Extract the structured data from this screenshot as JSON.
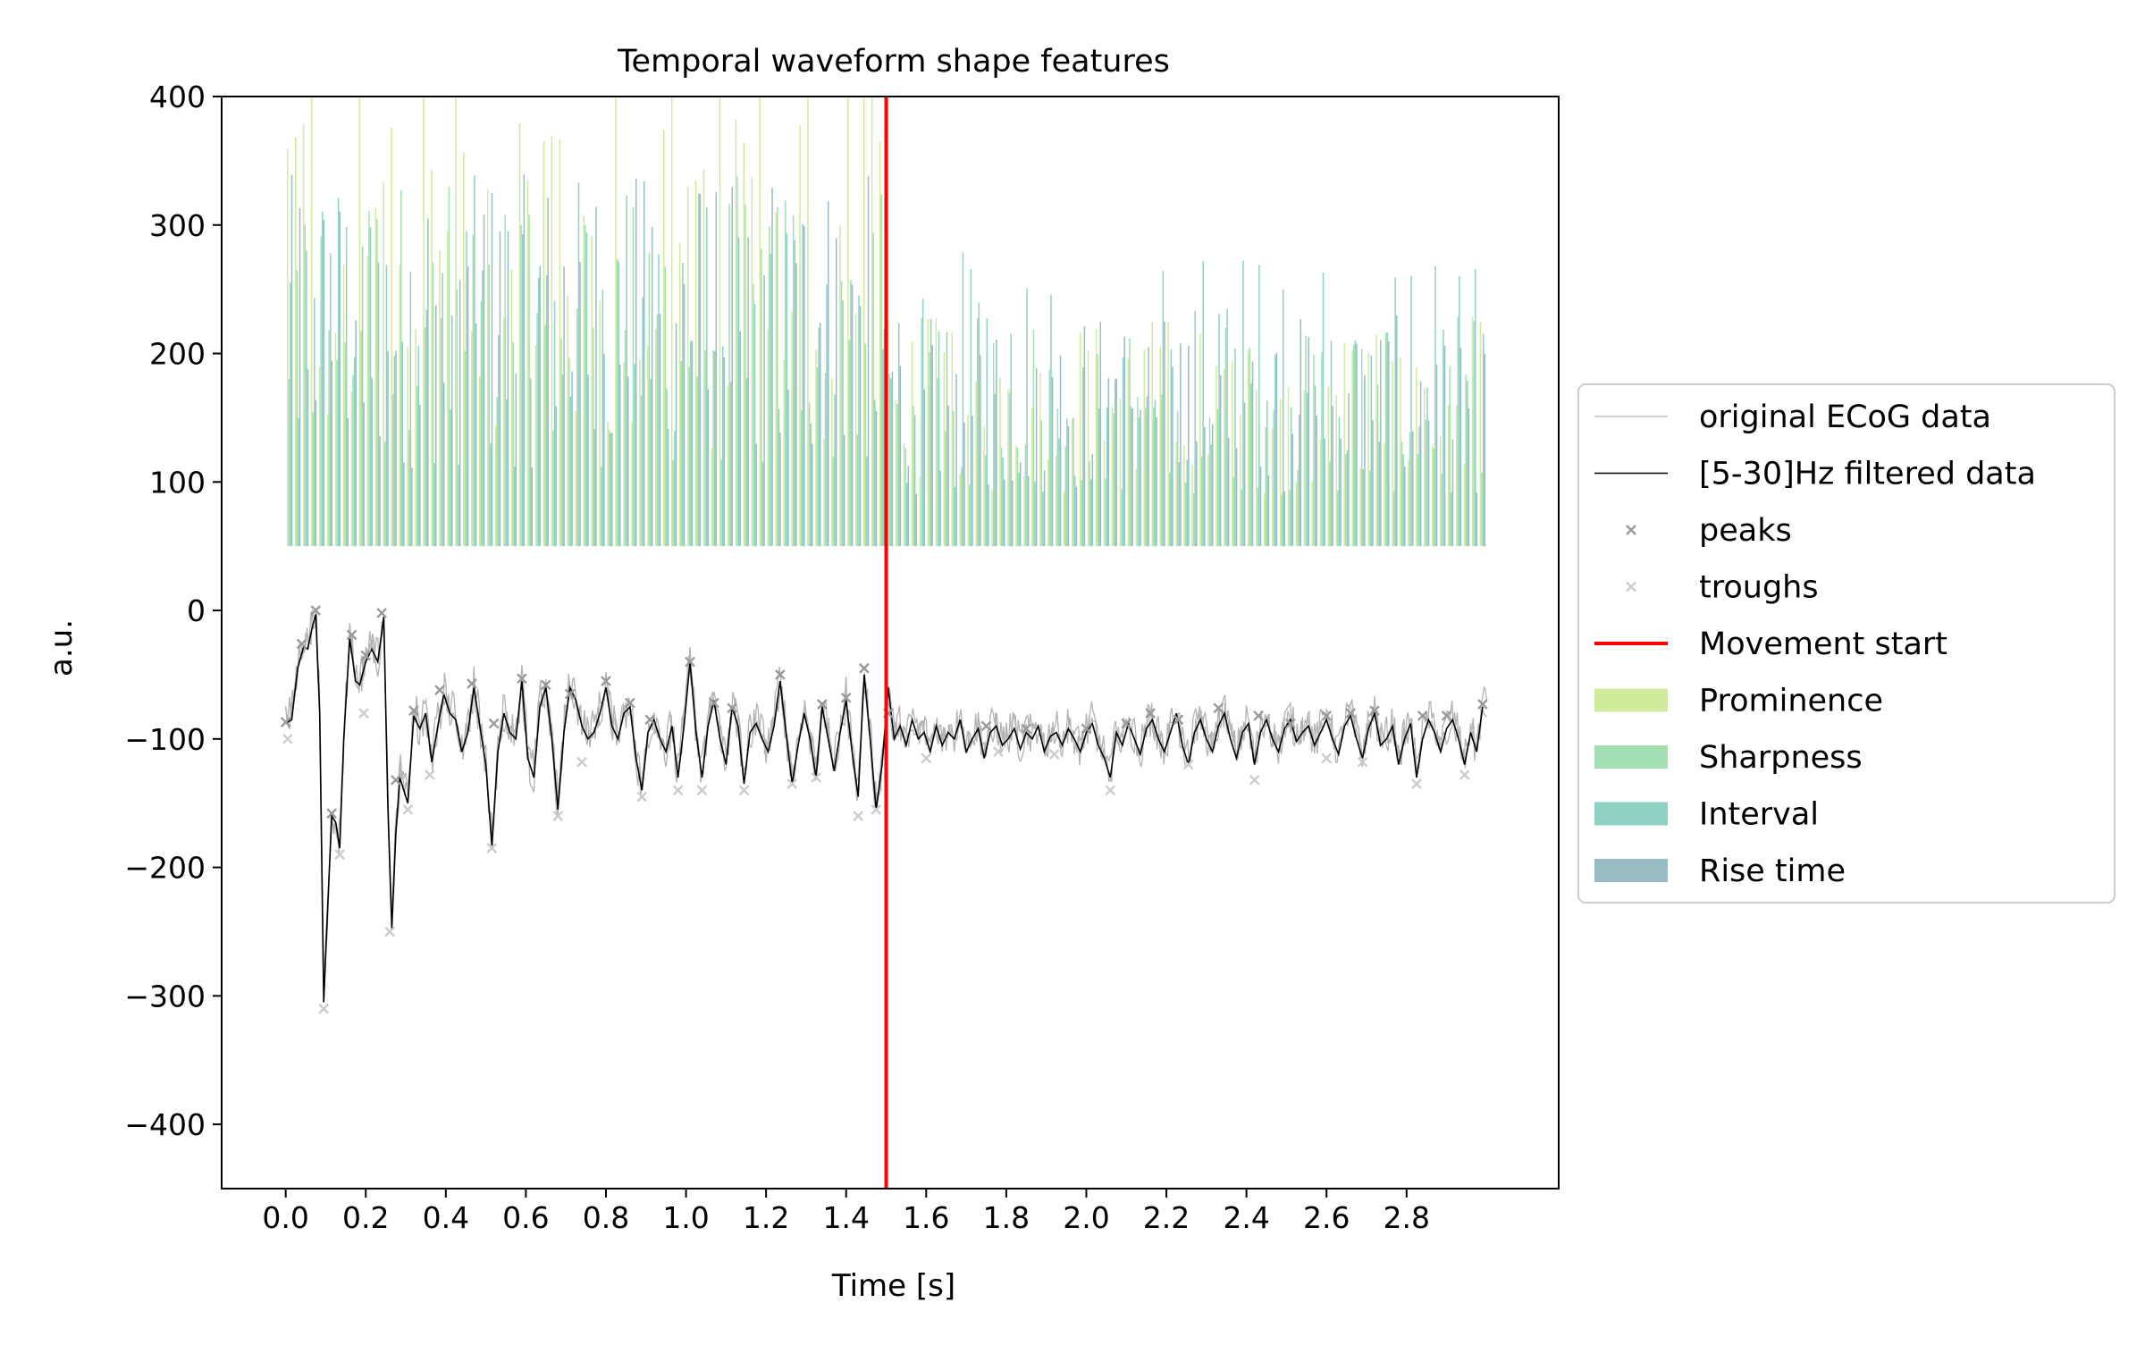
{
  "chart_data": {
    "type": "line",
    "title": "Temporal waveform shape features",
    "xlabel": "Time [s]",
    "ylabel": "a.u.",
    "xlim": [
      -0.16,
      3.18
    ],
    "ylim": [
      -450,
      400
    ],
    "xticks": [
      0.0,
      0.2,
      0.4,
      0.6,
      0.8,
      1.0,
      1.2,
      1.4,
      1.6,
      1.8,
      2.0,
      2.2,
      2.4,
      2.6,
      2.8
    ],
    "xtick_labels": [
      "0.0",
      "0.2",
      "0.4",
      "0.6",
      "0.8",
      "1.0",
      "1.2",
      "1.4",
      "1.6",
      "1.8",
      "2.0",
      "2.2",
      "2.4",
      "2.6",
      "2.8"
    ],
    "yticks": [
      -400,
      -300,
      -200,
      -100,
      0,
      100,
      200,
      300,
      400
    ],
    "ytick_labels": [
      "−400",
      "−300",
      "−200",
      "−100",
      "0",
      "100",
      "200",
      "300",
      "400"
    ],
    "grid": false,
    "legend_position": "outside-right",
    "legend": [
      {
        "label": "original ECoG data",
        "kind": "line",
        "color": "#b3b3b3",
        "width": 1.2
      },
      {
        "label": "[5-30]Hz filtered data",
        "kind": "line",
        "color": "#000000",
        "width": 1.6
      },
      {
        "label": "peaks",
        "kind": "marker",
        "color": "#999999"
      },
      {
        "label": "troughs",
        "kind": "marker",
        "color": "#cccccc"
      },
      {
        "label": "Movement start",
        "kind": "line",
        "color": "#ff0000",
        "width": 4
      },
      {
        "label": "Prominence",
        "kind": "patch",
        "color": "#d0eb9b"
      },
      {
        "label": "Sharpness",
        "kind": "patch",
        "color": "#a4dfb3"
      },
      {
        "label": "Interval",
        "kind": "patch",
        "color": "#8fd1c3"
      },
      {
        "label": "Rise time",
        "kind": "patch",
        "color": "#97bcc4"
      }
    ],
    "movement_start": 1.5,
    "feature_bar_base": 50,
    "filtered_series": {
      "name": "[5-30]Hz filtered data",
      "points": [
        [
          0.0,
          -88
        ],
        [
          0.015,
          -85
        ],
        [
          0.03,
          -45
        ],
        [
          0.045,
          -28
        ],
        [
          0.055,
          -30
        ],
        [
          0.065,
          -15
        ],
        [
          0.075,
          -3
        ],
        [
          0.085,
          -80
        ],
        [
          0.095,
          -305
        ],
        [
          0.105,
          -230
        ],
        [
          0.115,
          -160
        ],
        [
          0.125,
          -165
        ],
        [
          0.135,
          -185
        ],
        [
          0.145,
          -100
        ],
        [
          0.16,
          -22
        ],
        [
          0.175,
          -55
        ],
        [
          0.185,
          -58
        ],
        [
          0.2,
          -40
        ],
        [
          0.215,
          -30
        ],
        [
          0.23,
          -40
        ],
        [
          0.245,
          -5
        ],
        [
          0.255,
          -150
        ],
        [
          0.265,
          -248
        ],
        [
          0.275,
          -175
        ],
        [
          0.285,
          -130
        ],
        [
          0.295,
          -140
        ],
        [
          0.305,
          -150
        ],
        [
          0.32,
          -82
        ],
        [
          0.335,
          -92
        ],
        [
          0.35,
          -80
        ],
        [
          0.365,
          -118
        ],
        [
          0.38,
          -90
        ],
        [
          0.395,
          -65
        ],
        [
          0.41,
          -80
        ],
        [
          0.425,
          -85
        ],
        [
          0.44,
          -110
        ],
        [
          0.455,
          -95
        ],
        [
          0.47,
          -60
        ],
        [
          0.485,
          -90
        ],
        [
          0.5,
          -120
        ],
        [
          0.515,
          -183
        ],
        [
          0.53,
          -110
        ],
        [
          0.545,
          -80
        ],
        [
          0.56,
          -95
        ],
        [
          0.575,
          -100
        ],
        [
          0.59,
          -55
        ],
        [
          0.605,
          -115
        ],
        [
          0.62,
          -130
        ],
        [
          0.635,
          -75
        ],
        [
          0.65,
          -60
        ],
        [
          0.665,
          -100
        ],
        [
          0.68,
          -155
        ],
        [
          0.695,
          -95
        ],
        [
          0.71,
          -60
        ],
        [
          0.725,
          -70
        ],
        [
          0.74,
          -90
        ],
        [
          0.755,
          -100
        ],
        [
          0.77,
          -95
        ],
        [
          0.785,
          -80
        ],
        [
          0.8,
          -60
        ],
        [
          0.815,
          -90
        ],
        [
          0.83,
          -100
        ],
        [
          0.845,
          -80
        ],
        [
          0.86,
          -75
        ],
        [
          0.875,
          -115
        ],
        [
          0.89,
          -140
        ],
        [
          0.905,
          -95
        ],
        [
          0.92,
          -85
        ],
        [
          0.935,
          -100
        ],
        [
          0.95,
          -110
        ],
        [
          0.965,
          -90
        ],
        [
          0.98,
          -130
        ],
        [
          0.995,
          -90
        ],
        [
          1.01,
          -40
        ],
        [
          1.025,
          -95
        ],
        [
          1.04,
          -130
        ],
        [
          1.055,
          -90
        ],
        [
          1.07,
          -70
        ],
        [
          1.085,
          -100
        ],
        [
          1.1,
          -120
        ],
        [
          1.115,
          -75
        ],
        [
          1.13,
          -90
        ],
        [
          1.145,
          -135
        ],
        [
          1.16,
          -95
        ],
        [
          1.175,
          -88
        ],
        [
          1.19,
          -100
        ],
        [
          1.205,
          -110
        ],
        [
          1.22,
          -90
        ],
        [
          1.235,
          -55
        ],
        [
          1.25,
          -95
        ],
        [
          1.265,
          -135
        ],
        [
          1.28,
          -105
        ],
        [
          1.295,
          -80
        ],
        [
          1.31,
          -100
        ],
        [
          1.325,
          -130
        ],
        [
          1.34,
          -75
        ],
        [
          1.355,
          -100
        ],
        [
          1.37,
          -125
        ],
        [
          1.385,
          -95
        ],
        [
          1.4,
          -70
        ],
        [
          1.415,
          -110
        ],
        [
          1.43,
          -145
        ],
        [
          1.445,
          -50
        ],
        [
          1.46,
          -100
        ],
        [
          1.475,
          -155
        ],
        [
          1.49,
          -120
        ],
        [
          1.505,
          -60
        ],
        [
          1.52,
          -100
        ],
        [
          1.535,
          -90
        ],
        [
          1.55,
          -105
        ],
        [
          1.565,
          -85
        ],
        [
          1.58,
          -100
        ],
        [
          1.595,
          -95
        ],
        [
          1.61,
          -110
        ],
        [
          1.625,
          -90
        ],
        [
          1.64,
          -105
        ],
        [
          1.655,
          -95
        ],
        [
          1.67,
          -100
        ],
        [
          1.685,
          -85
        ],
        [
          1.7,
          -110
        ],
        [
          1.715,
          -100
        ],
        [
          1.73,
          -92
        ],
        [
          1.745,
          -115
        ],
        [
          1.76,
          -95
        ],
        [
          1.775,
          -90
        ],
        [
          1.79,
          -105
        ],
        [
          1.805,
          -100
        ],
        [
          1.82,
          -92
        ],
        [
          1.835,
          -108
        ],
        [
          1.85,
          -95
        ],
        [
          1.865,
          -100
        ],
        [
          1.88,
          -90
        ],
        [
          1.895,
          -110
        ],
        [
          1.91,
          -98
        ],
        [
          1.925,
          -95
        ],
        [
          1.94,
          -105
        ],
        [
          1.955,
          -92
        ],
        [
          1.97,
          -100
        ],
        [
          1.985,
          -110
        ],
        [
          2.0,
          -95
        ],
        [
          2.015,
          -88
        ],
        [
          2.03,
          -105
        ],
        [
          2.045,
          -115
        ],
        [
          2.06,
          -130
        ],
        [
          2.075,
          -95
        ],
        [
          2.09,
          -105
        ],
        [
          2.105,
          -88
        ],
        [
          2.12,
          -100
        ],
        [
          2.135,
          -112
        ],
        [
          2.15,
          -92
        ],
        [
          2.165,
          -85
        ],
        [
          2.18,
          -100
        ],
        [
          2.195,
          -110
        ],
        [
          2.21,
          -95
        ],
        [
          2.225,
          -80
        ],
        [
          2.24,
          -105
        ],
        [
          2.255,
          -120
        ],
        [
          2.27,
          -95
        ],
        [
          2.285,
          -85
        ],
        [
          2.3,
          -100
        ],
        [
          2.315,
          -110
        ],
        [
          2.33,
          -90
        ],
        [
          2.345,
          -80
        ],
        [
          2.36,
          -100
        ],
        [
          2.375,
          -115
        ],
        [
          2.39,
          -95
        ],
        [
          2.405,
          -88
        ],
        [
          2.42,
          -120
        ],
        [
          2.435,
          -95
        ],
        [
          2.45,
          -85
        ],
        [
          2.465,
          -100
        ],
        [
          2.48,
          -110
        ],
        [
          2.495,
          -92
        ],
        [
          2.51,
          -85
        ],
        [
          2.525,
          -102
        ],
        [
          2.54,
          -95
        ],
        [
          2.555,
          -90
        ],
        [
          2.57,
          -105
        ],
        [
          2.585,
          -95
        ],
        [
          2.6,
          -85
        ],
        [
          2.615,
          -100
        ],
        [
          2.63,
          -112
        ],
        [
          2.645,
          -90
        ],
        [
          2.66,
          -82
        ],
        [
          2.675,
          -100
        ],
        [
          2.69,
          -115
        ],
        [
          2.705,
          -92
        ],
        [
          2.72,
          -80
        ],
        [
          2.735,
          -105
        ],
        [
          2.75,
          -100
        ],
        [
          2.765,
          -90
        ],
        [
          2.78,
          -120
        ],
        [
          2.795,
          -100
        ],
        [
          2.81,
          -88
        ],
        [
          2.825,
          -130
        ],
        [
          2.84,
          -100
        ],
        [
          2.855,
          -85
        ],
        [
          2.87,
          -95
        ],
        [
          2.885,
          -110
        ],
        [
          2.9,
          -92
        ],
        [
          2.915,
          -85
        ],
        [
          2.93,
          -100
        ],
        [
          2.945,
          -120
        ],
        [
          2.96,
          -95
        ],
        [
          2.975,
          -110
        ],
        [
          2.99,
          -75
        ]
      ]
    },
    "peaks": [
      [
        0.0,
        -87
      ],
      [
        0.04,
        -26
      ],
      [
        0.075,
        0
      ],
      [
        0.115,
        -158
      ],
      [
        0.165,
        -19
      ],
      [
        0.2,
        -35
      ],
      [
        0.24,
        -2
      ],
      [
        0.275,
        -132
      ],
      [
        0.32,
        -78
      ],
      [
        0.385,
        -62
      ],
      [
        0.465,
        -57
      ],
      [
        0.52,
        -88
      ],
      [
        0.59,
        -53
      ],
      [
        0.65,
        -58
      ],
      [
        0.71,
        -65
      ],
      [
        0.8,
        -55
      ],
      [
        0.86,
        -72
      ],
      [
        0.91,
        -85
      ],
      [
        1.01,
        -40
      ],
      [
        1.07,
        -72
      ],
      [
        1.115,
        -76
      ],
      [
        1.235,
        -50
      ],
      [
        1.34,
        -73
      ],
      [
        1.4,
        -68
      ],
      [
        1.445,
        -45
      ],
      [
        1.505,
        -80
      ],
      [
        1.75,
        -90
      ],
      [
        1.85,
        -92
      ],
      [
        2.0,
        -92
      ],
      [
        2.1,
        -88
      ],
      [
        2.16,
        -80
      ],
      [
        2.23,
        -85
      ],
      [
        2.33,
        -76
      ],
      [
        2.43,
        -82
      ],
      [
        2.51,
        -88
      ],
      [
        2.6,
        -82
      ],
      [
        2.66,
        -80
      ],
      [
        2.72,
        -78
      ],
      [
        2.84,
        -82
      ],
      [
        2.9,
        -82
      ],
      [
        2.99,
        -73
      ]
    ],
    "troughs": [
      [
        0.005,
        -100
      ],
      [
        0.095,
        -310
      ],
      [
        0.135,
        -190
      ],
      [
        0.195,
        -80
      ],
      [
        0.26,
        -250
      ],
      [
        0.305,
        -155
      ],
      [
        0.36,
        -128
      ],
      [
        0.515,
        -185
      ],
      [
        0.68,
        -160
      ],
      [
        0.74,
        -118
      ],
      [
        0.89,
        -145
      ],
      [
        0.98,
        -140
      ],
      [
        1.04,
        -140
      ],
      [
        1.145,
        -140
      ],
      [
        1.265,
        -135
      ],
      [
        1.325,
        -130
      ],
      [
        1.43,
        -160
      ],
      [
        1.475,
        -155
      ],
      [
        1.6,
        -115
      ],
      [
        1.78,
        -110
      ],
      [
        1.92,
        -112
      ],
      [
        2.06,
        -140
      ],
      [
        2.255,
        -120
      ],
      [
        2.42,
        -132
      ],
      [
        2.6,
        -115
      ],
      [
        2.69,
        -118
      ],
      [
        2.825,
        -135
      ],
      [
        2.945,
        -128
      ]
    ],
    "original_series": {
      "name": "original ECoG data",
      "x_range": [
        0.0,
        3.0
      ]
    },
    "features": {
      "x_range": [
        0.01,
        2.99
      ],
      "bar_count": 150,
      "series": [
        {
          "name": "Prominence",
          "color": "#d0eb9b"
        },
        {
          "name": "Sharpness",
          "color": "#a4dfb3"
        },
        {
          "name": "Interval",
          "color": "#8fd1c3"
        },
        {
          "name": "Rise time",
          "color": "#97bcc4"
        }
      ]
    }
  }
}
